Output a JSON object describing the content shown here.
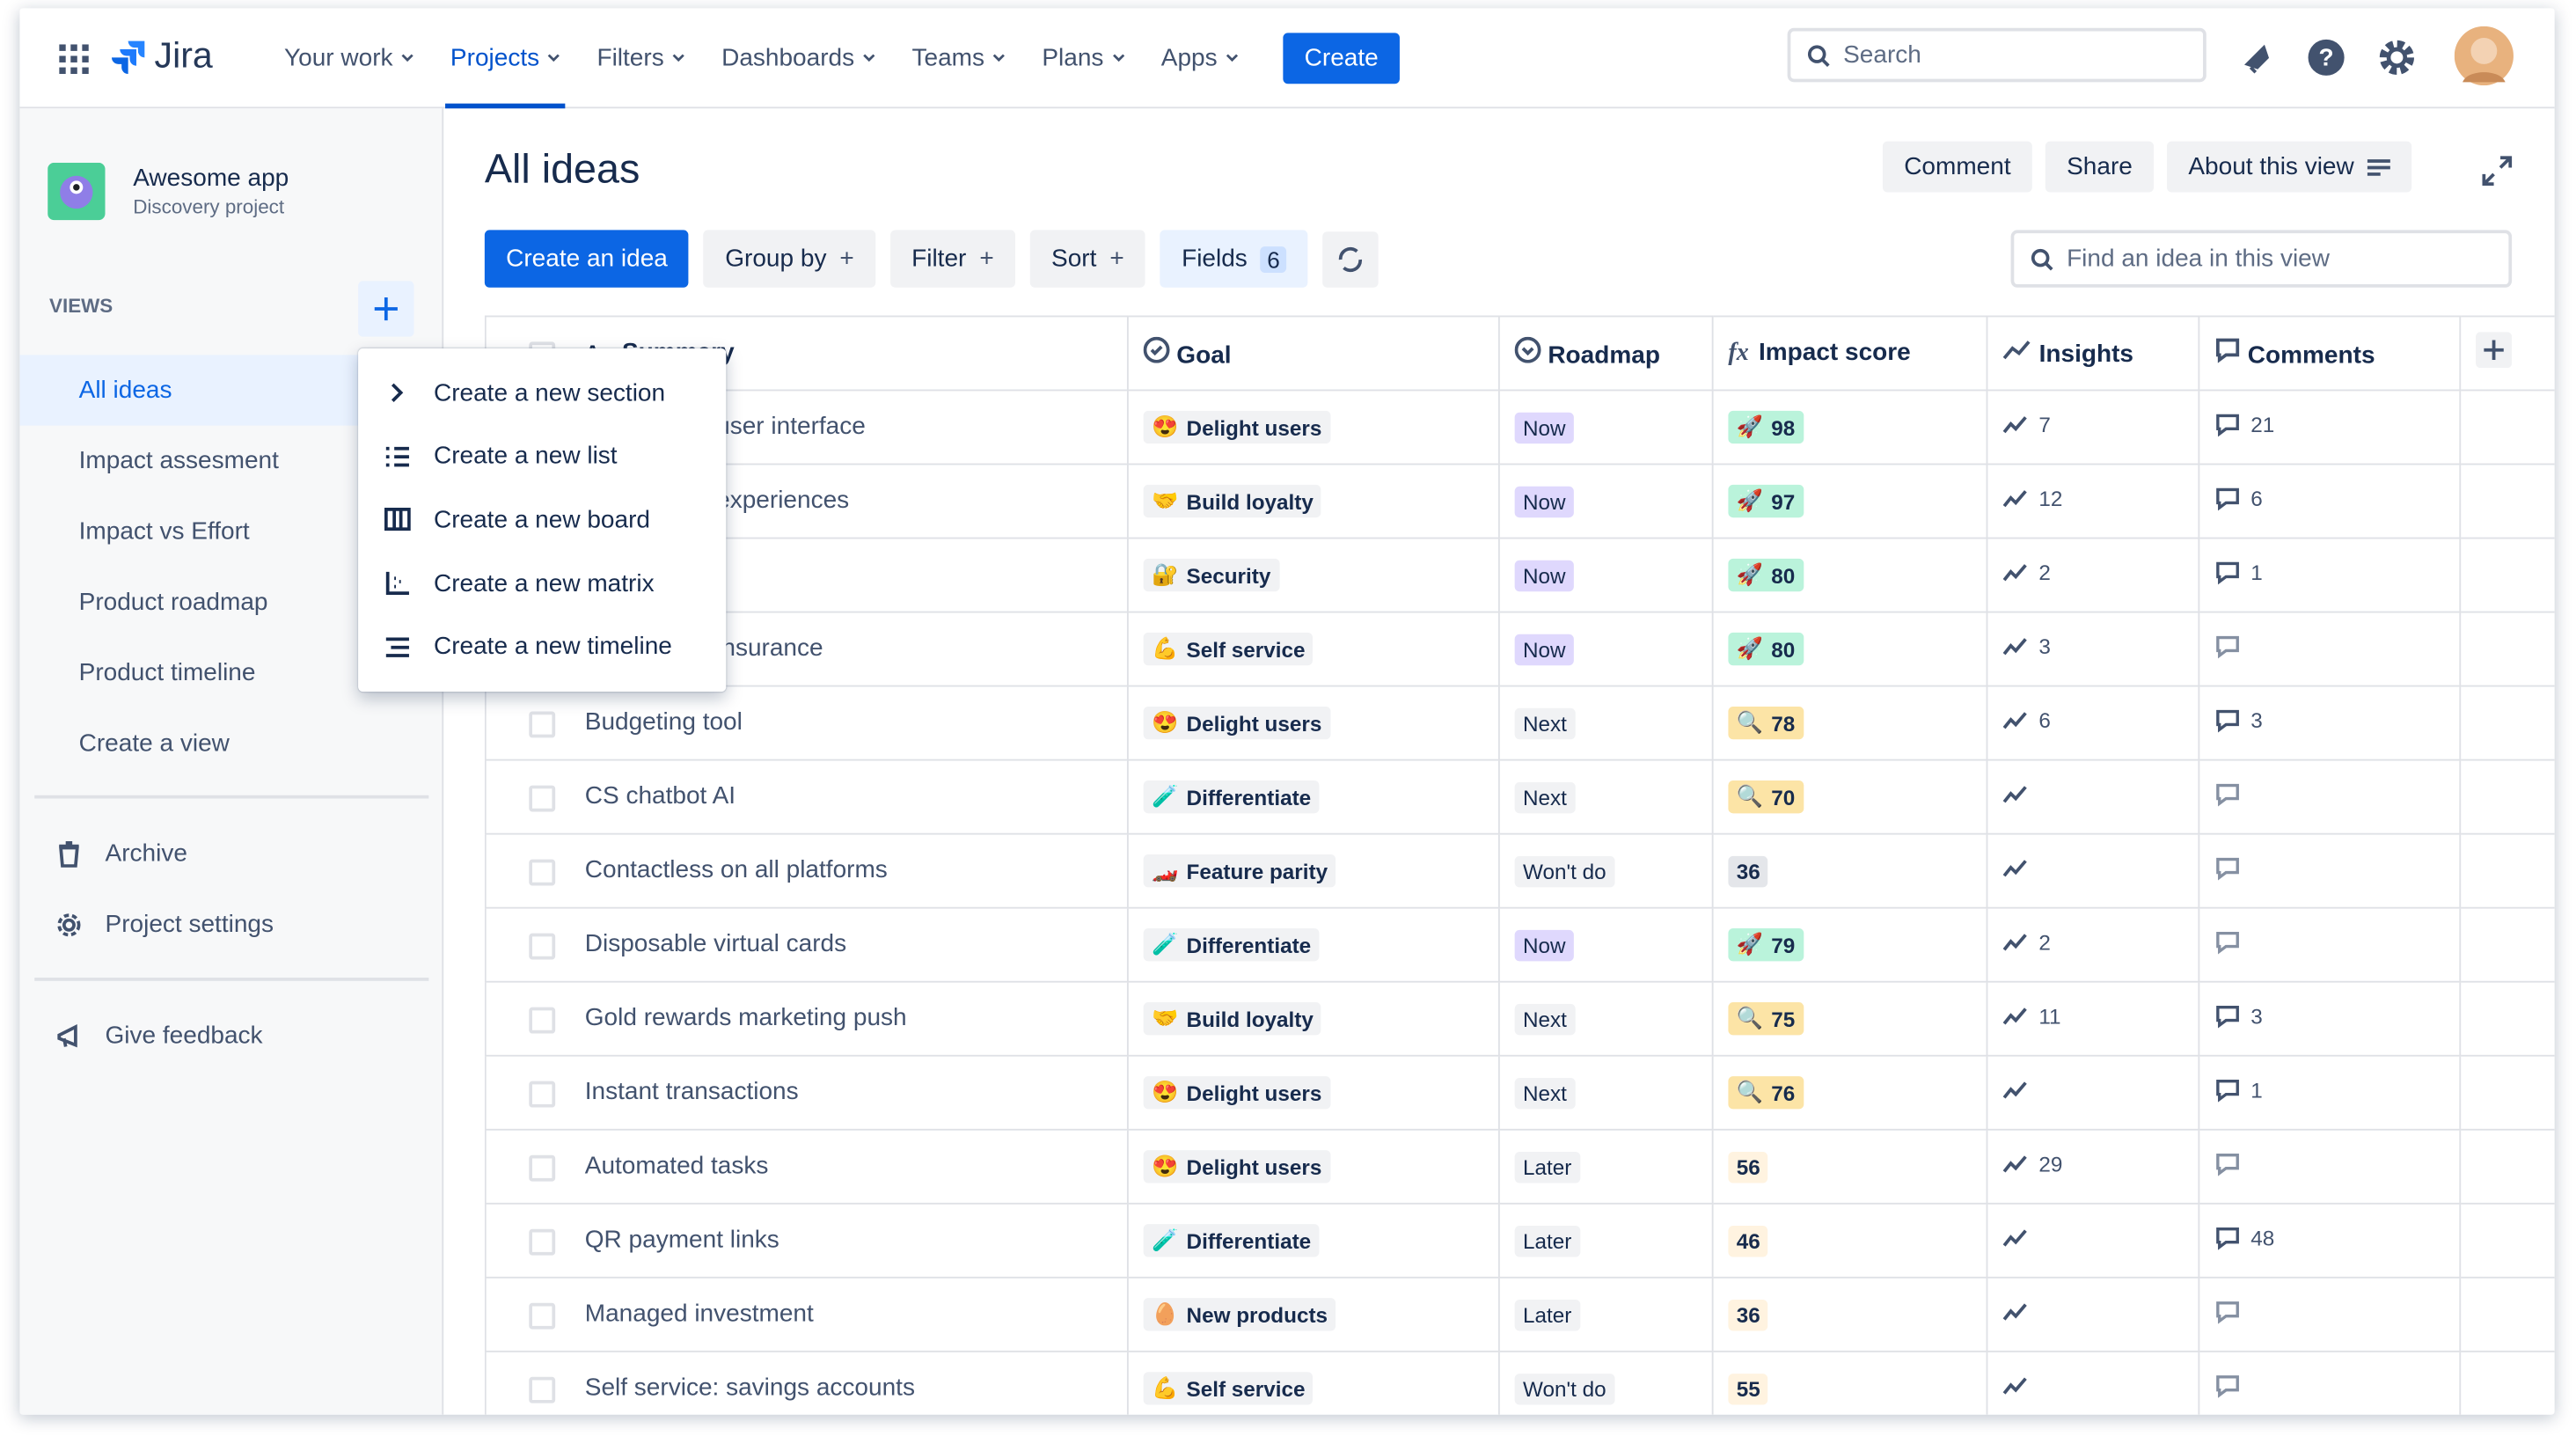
{
  "nav": {
    "logo": "Jira",
    "items": [
      "Your work",
      "Projects",
      "Filters",
      "Dashboards",
      "Teams",
      "Plans",
      "Apps"
    ],
    "selected": 1,
    "create": "Create",
    "search": "Search"
  },
  "sidebar": {
    "project_name": "Awesome app",
    "project_type": "Discovery project",
    "views_label": "VIEWS",
    "views": [
      "All ideas",
      "Impact assesment",
      "Impact vs Effort",
      "Product roadmap",
      "Product timeline",
      "Create a view"
    ],
    "selected": 0,
    "links": [
      "Archive",
      "Project settings"
    ],
    "feedback": "Give feedback"
  },
  "menu": {
    "items": [
      "Create a new section",
      "Create a new list",
      "Create a new board",
      "Create a new matrix",
      "Create a new timeline"
    ]
  },
  "main": {
    "title": "All ideas",
    "actions": [
      "Comment",
      "Share",
      "About this view"
    ],
    "toolbar": {
      "create": "Create an idea",
      "group_by": "Group by",
      "filter": "Filter",
      "sort": "Sort",
      "fields": "Fields",
      "fields_count": "6",
      "find_placeholder": "Find an idea in this view"
    }
  },
  "table": {
    "headers": [
      "Summary",
      "Goal",
      "Roadmap",
      "Impact score",
      "Insights",
      "Comments"
    ],
    "rows": [
      {
        "summary": "user interface",
        "goal_icon": "😍",
        "goal": "Delight users",
        "roadmap": "Now",
        "roadmap_bg": "#dfd8fd",
        "impact_icon": "🚀",
        "impact": "98",
        "impact_bg": "#baf3db",
        "insights": "7",
        "comments": "21"
      },
      {
        "summary": "experiences",
        "goal_icon": "🤝",
        "goal": "Build loyalty",
        "roadmap": "Now",
        "roadmap_bg": "#dfd8fd",
        "impact_icon": "🚀",
        "impact": "97",
        "impact_bg": "#baf3db",
        "insights": "12",
        "comments": "6"
      },
      {
        "summary": null,
        "goal_icon": "🔐",
        "goal": "Security",
        "roadmap": "Now",
        "roadmap_bg": "#dfd8fd",
        "impact_icon": "🚀",
        "impact": "80",
        "impact_bg": "#baf3db",
        "insights": "2",
        "comments": "1"
      },
      {
        "summary": "insurance",
        "goal_icon": "💪",
        "goal": "Self service",
        "roadmap": "Now",
        "roadmap_bg": "#dfd8fd",
        "impact_icon": "🚀",
        "impact": "80",
        "impact_bg": "#baf3db",
        "insights": "3",
        "comments": null
      },
      {
        "summary": "Budgeting tool",
        "goal_icon": "😍",
        "goal": "Delight users",
        "roadmap": "Next",
        "roadmap_bg": "#f1f2f4",
        "impact_icon": "🔍",
        "impact": "78",
        "impact_bg": "#fce4a6",
        "insights": "6",
        "comments": "3"
      },
      {
        "summary": "CS chatbot AI",
        "goal_icon": "🧪",
        "goal": "Differentiate",
        "roadmap": "Next",
        "roadmap_bg": "#f1f2f4",
        "impact_icon": "🔍",
        "impact": "70",
        "impact_bg": "#fce4a6",
        "insights": null,
        "comments": null
      },
      {
        "summary": "Contactless on all platforms",
        "goal_icon": "🏎️",
        "goal": "Feature parity",
        "roadmap": "Won't do",
        "roadmap_bg": "#f1f2f4",
        "impact_icon": null,
        "impact": "36",
        "impact_bg": "#e4e6ea",
        "insights": null,
        "comments": null
      },
      {
        "summary": "Disposable virtual cards",
        "goal_icon": "🧪",
        "goal": "Differentiate",
        "roadmap": "Now",
        "roadmap_bg": "#dfd8fd",
        "impact_icon": "🚀",
        "impact": "79",
        "impact_bg": "#baf3db",
        "insights": "2",
        "comments": null
      },
      {
        "summary": "Gold rewards marketing push",
        "goal_icon": "🤝",
        "goal": "Build loyalty",
        "roadmap": "Next",
        "roadmap_bg": "#f1f2f4",
        "impact_icon": "🔍",
        "impact": "75",
        "impact_bg": "#fce4a6",
        "insights": "11",
        "comments": "3"
      },
      {
        "summary": "Instant transactions",
        "goal_icon": "😍",
        "goal": "Delight users",
        "roadmap": "Next",
        "roadmap_bg": "#f1f2f4",
        "impact_icon": "🔍",
        "impact": "76",
        "impact_bg": "#fce4a6",
        "insights": null,
        "comments": "1"
      },
      {
        "summary": "Automated tasks",
        "goal_icon": "😍",
        "goal": "Delight users",
        "roadmap": "Later",
        "roadmap_bg": "#f1f2f4",
        "impact_icon": null,
        "impact": "56",
        "impact_bg": "#fff3e0",
        "insights": "29",
        "comments": null
      },
      {
        "summary": "QR payment links",
        "goal_icon": "🧪",
        "goal": "Differentiate",
        "roadmap": "Later",
        "roadmap_bg": "#f1f2f4",
        "impact_icon": null,
        "impact": "46",
        "impact_bg": "#fff3e0",
        "insights": null,
        "comments": "48"
      },
      {
        "summary": "Managed investment",
        "goal_icon": "🥚",
        "goal": "New products",
        "roadmap": "Later",
        "roadmap_bg": "#f1f2f4",
        "impact_icon": null,
        "impact": "36",
        "impact_bg": "#fff3e0",
        "insights": null,
        "comments": null
      },
      {
        "summary": "Self service: savings accounts",
        "goal_icon": "💪",
        "goal": "Self service",
        "roadmap": "Won't do",
        "roadmap_bg": "#f1f2f4",
        "impact_icon": null,
        "impact": "55",
        "impact_bg": "#fff3e0",
        "insights": null,
        "comments": null
      }
    ]
  }
}
